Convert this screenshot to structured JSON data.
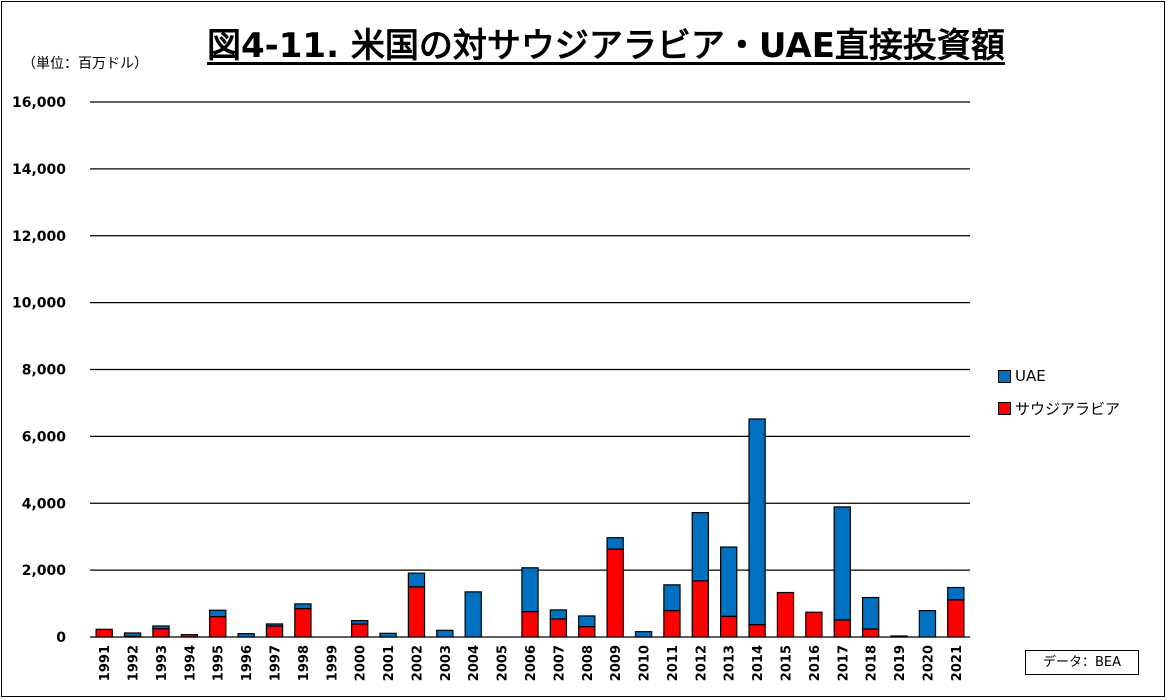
{
  "chart_data": {
    "type": "bar",
    "stacked": true,
    "title": "図4-11. 米国の対サウジアラビア・UAE直接投資額",
    "ylabel": "（単位：百万ドル）",
    "xlabel": "",
    "ylim": [
      0,
      16000
    ],
    "yticks": [
      "0",
      "2,000",
      "4,000",
      "6,000",
      "8,000",
      "10,000",
      "12,000",
      "14,000",
      "16,000"
    ],
    "grid": true,
    "legend_position": "right",
    "categories": [
      "1991",
      "1992",
      "1993",
      "1994",
      "1995",
      "1996",
      "1997",
      "1998",
      "1999",
      "2000",
      "2001",
      "2002",
      "2003",
      "2004",
      "2005",
      "2006",
      "2007",
      "2008",
      "2009",
      "2010",
      "2011",
      "2012",
      "2013",
      "2014",
      "2015",
      "2016",
      "2017",
      "2018",
      "2019",
      "2020",
      "2021"
    ],
    "series": [
      {
        "name": "サウジアラビア",
        "color": "#FF0000",
        "values": [
          230,
          20,
          250,
          70,
          610,
          0,
          330,
          850,
          0,
          390,
          0,
          1500,
          0,
          0,
          0,
          760,
          540,
          310,
          2630,
          0,
          790,
          1680,
          620,
          370,
          1330,
          740,
          510,
          240,
          0,
          0,
          1110
        ]
      },
      {
        "name": "UAE",
        "color": "#0070C0",
        "values": [
          0,
          100,
          80,
          0,
          190,
          100,
          60,
          140,
          0,
          100,
          110,
          410,
          200,
          1350,
          0,
          1310,
          270,
          320,
          340,
          160,
          770,
          2040,
          2070,
          6150,
          0,
          0,
          3380,
          940,
          30,
          790,
          370
        ]
      }
    ],
    "source": "データ：BEA"
  }
}
